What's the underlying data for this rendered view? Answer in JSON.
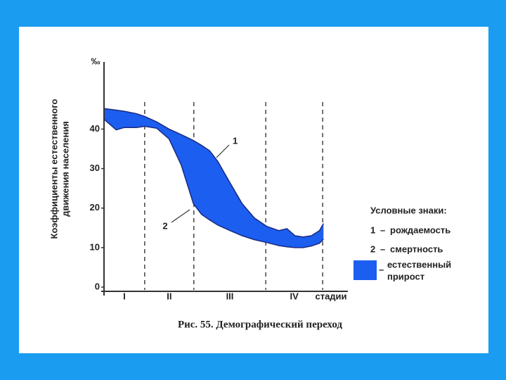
{
  "chart_data": {
    "type": "area-between",
    "caption": "Рис. 55. Демографический переход",
    "ylabel_lines": [
      "Коэффициенты естественного",
      "движения населения"
    ],
    "yunit": "‰",
    "xlabel": "стадии",
    "stages": [
      "I",
      "II",
      "III",
      "IV"
    ],
    "stage_boundaries": [
      10,
      22.1,
      39.8,
      53.8
    ],
    "xlim": [
      0,
      60
    ],
    "ylim": [
      0,
      57
    ],
    "yticks": [
      0,
      10,
      20,
      30,
      40
    ],
    "x": [
      0,
      3,
      5,
      8,
      10,
      13,
      16,
      19,
      22,
      24,
      26,
      28,
      31,
      34,
      37,
      40,
      43,
      45,
      47,
      49,
      51,
      53,
      54
    ],
    "series": [
      {
        "name": "рождаемость",
        "label": "1",
        "color": "#1a2a80",
        "values": [
          45.2,
          44.8,
          44.5,
          43.9,
          43.2,
          41.8,
          40,
          38.6,
          37.1,
          35.9,
          34.5,
          31.8,
          26.4,
          21.1,
          17.5,
          15.4,
          14.3,
          14.8,
          13.0,
          12.7,
          13.0,
          14.3,
          16.1
        ]
      },
      {
        "name": "смертность",
        "label": "2",
        "color": "#1a2a80",
        "values": [
          42.5,
          39.8,
          40.4,
          40.4,
          40.7,
          40.2,
          37.5,
          30.9,
          21.1,
          18.4,
          17.0,
          15.7,
          14.3,
          13.0,
          12.0,
          11.3,
          10.5,
          10.2,
          10.0,
          10.0,
          10.4,
          11.1,
          12.1
        ]
      }
    ],
    "fill_color": "#1c5ef0",
    "legend_title": "Условные знаки:",
    "legend_dash": "–",
    "fill_label_lines": [
      "естественный",
      "прирост"
    ]
  }
}
